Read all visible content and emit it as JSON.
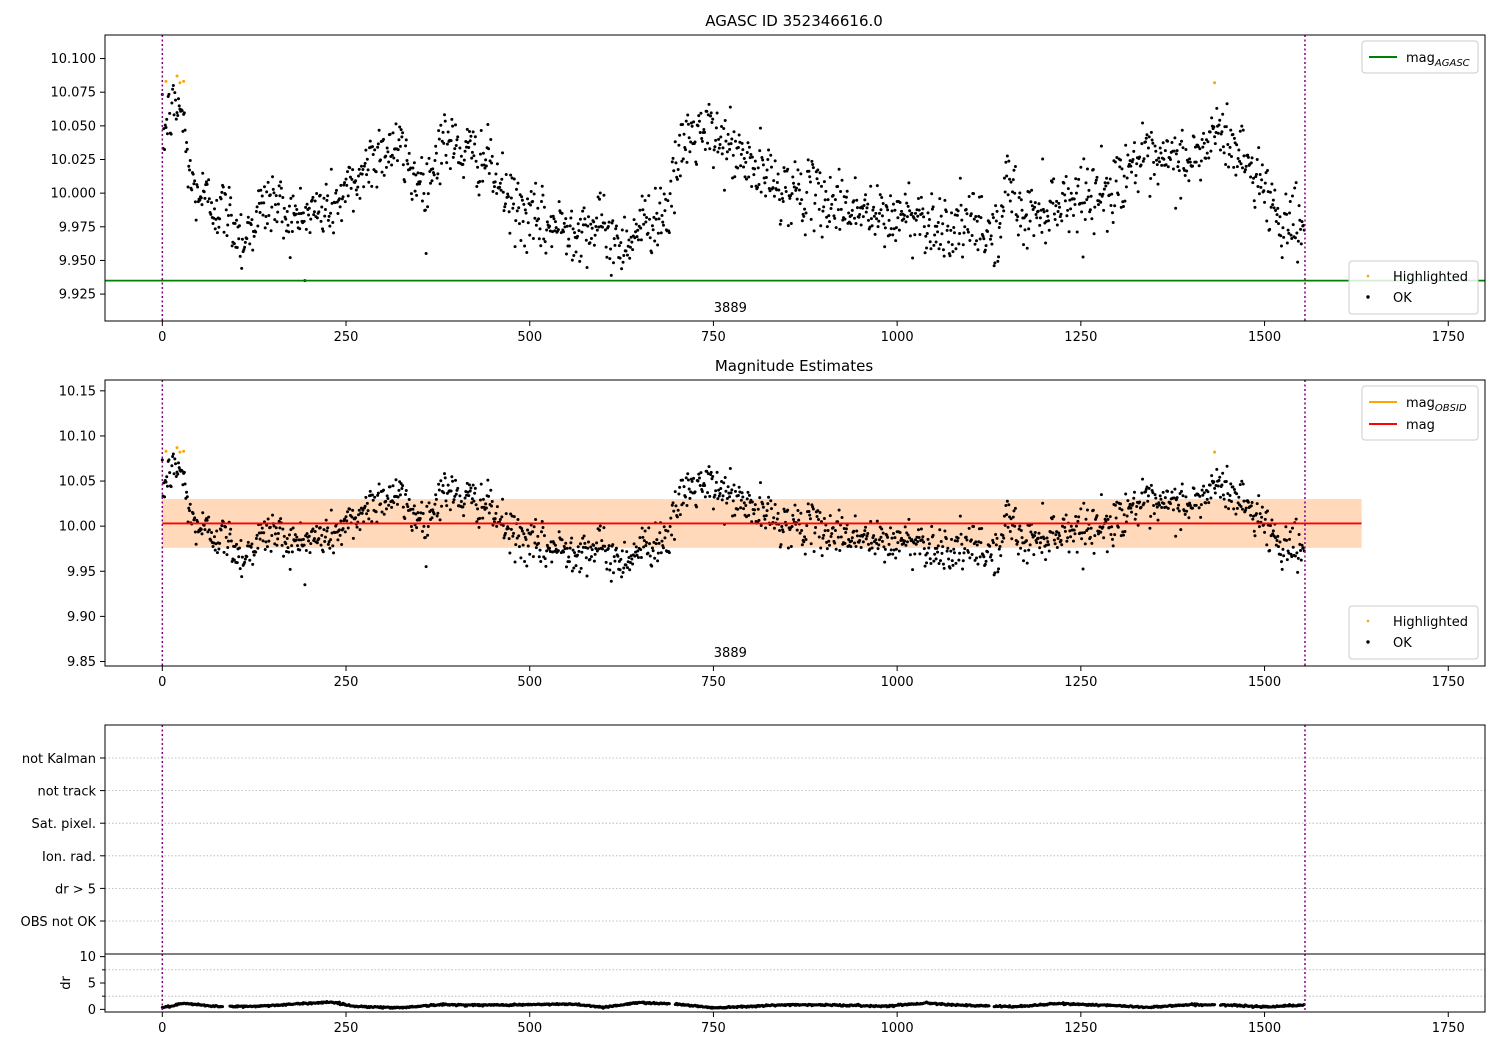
{
  "figure": {
    "panels": [
      {
        "id": "p1",
        "title": "AGASC ID 352346616.0",
        "xlim": [
          -78,
          1800
        ],
        "ylim": [
          9.905,
          10.1175
        ],
        "xticks": [
          0,
          250,
          500,
          750,
          1000,
          1250,
          1500,
          1750
        ],
        "yticks": [
          9.925,
          9.95,
          9.975,
          10.0,
          10.025,
          10.05,
          10.075,
          10.1
        ],
        "ytick_labels": [
          "9.925",
          "9.950",
          "9.975",
          "10.000",
          "10.025",
          "10.050",
          "10.075",
          "10.100"
        ],
        "obsid_text": "3889",
        "obsid_text_x": 773,
        "hline": {
          "y": 9.935,
          "color": "#008000"
        },
        "vlines": [
          0,
          1555
        ],
        "legend_upper": [
          {
            "label": "mag",
            "sub": "AGASC",
            "color": "#008000"
          }
        ],
        "legend_lower": [
          {
            "label": "Highlighted",
            "color": "#ffa500"
          },
          {
            "label": "OK",
            "color": "#000000"
          }
        ]
      },
      {
        "id": "p2",
        "title": "Magnitude Estimates",
        "xlim": [
          -78,
          1800
        ],
        "ylim": [
          9.845,
          10.162
        ],
        "xticks": [
          0,
          250,
          500,
          750,
          1000,
          1250,
          1500,
          1750
        ],
        "yticks": [
          9.85,
          9.9,
          9.95,
          10.0,
          10.05,
          10.1,
          10.15
        ],
        "ytick_labels": [
          "9.85",
          "9.90",
          "9.95",
          "10.00",
          "10.05",
          "10.10",
          "10.15"
        ],
        "obsid_text": "3889",
        "obsid_text_x": 773,
        "hline": {
          "y": 10.003,
          "color": "#ff0000"
        },
        "band": {
          "x": [
            0,
            1632
          ],
          "y": [
            9.976,
            10.03
          ],
          "color": "#ffb6c1"
        },
        "obsid_band": {
          "x": [
            0,
            1632
          ],
          "y": [
            9.976,
            10.03
          ],
          "color": "#ffa500"
        },
        "vlines": [
          0,
          1555
        ],
        "legend_upper": [
          {
            "label": "mag",
            "sub": "OBSID",
            "color": "#ffa500"
          },
          {
            "label": "mag",
            "sub": "",
            "color": "#ff0000"
          }
        ],
        "legend_lower": [
          {
            "label": "Highlighted",
            "color": "#ffa500"
          },
          {
            "label": "OK",
            "color": "#000000"
          }
        ]
      },
      {
        "id": "p3",
        "flag_labels": [
          "not Kalman",
          "not track",
          "Sat. pixel.",
          "Ion. rad.",
          "dr > 5",
          "OBS not OK"
        ],
        "vlines": [
          0,
          1555
        ]
      },
      {
        "id": "p4",
        "ylabel": "dr",
        "xlim": [
          -78,
          1800
        ],
        "ylim": [
          -0.5,
          10.5
        ],
        "xticks": [
          0,
          250,
          500,
          750,
          1000,
          1250,
          1500,
          1750
        ],
        "yticks": [
          0,
          5,
          10
        ],
        "ytick_labels": [
          "0",
          "5",
          "10"
        ],
        "vlines": [
          0,
          1555
        ]
      }
    ]
  },
  "chart_data": {
    "type": "scatter",
    "n_points": 1555,
    "x_range": [
      0,
      1555
    ],
    "series": [
      {
        "name": "OK",
        "color": "#000000",
        "trend_x": [
          0,
          10,
          25,
          40,
          60,
          90,
          110,
          130,
          150,
          180,
          200,
          230,
          260,
          290,
          320,
          340,
          360,
          380,
          410,
          440,
          470,
          500,
          530,
          560,
          600,
          620,
          650,
          690,
          710,
          740,
          770,
          800,
          840,
          870,
          900,
          940,
          980,
          1020,
          1060,
          1100,
          1140,
          1150,
          1170,
          1200,
          1230,
          1260,
          1290,
          1320,
          1350,
          1380,
          1410,
          1430,
          1450,
          1480,
          1500,
          1520,
          1540,
          1555
        ],
        "trend_y": [
          10.04,
          10.06,
          10.065,
          10.005,
          9.995,
          9.985,
          9.965,
          9.985,
          9.995,
          9.98,
          9.985,
          9.99,
          10.005,
          10.03,
          10.035,
          10.015,
          10.005,
          10.04,
          10.03,
          10.025,
          9.995,
          9.98,
          9.975,
          9.975,
          9.975,
          9.96,
          9.975,
          9.99,
          10.04,
          10.045,
          10.035,
          10.02,
          10.005,
          10.0,
          9.995,
          9.99,
          9.98,
          9.985,
          9.975,
          9.975,
          9.97,
          10.015,
          9.98,
          9.99,
          9.995,
          10.0,
          10.0,
          10.025,
          10.02,
          10.025,
          10.025,
          10.045,
          10.04,
          10.02,
          10.005,
          9.98,
          9.98,
          9.975
        ],
        "scatter_sd": 0.012
      },
      {
        "name": "Highlighted",
        "color": "#ffa500",
        "points": [
          [
            5,
            10.083
          ],
          [
            20,
            10.087
          ],
          [
            24,
            10.082
          ],
          [
            29,
            10.083
          ],
          [
            1432,
            10.082
          ]
        ]
      }
    ],
    "dr": {
      "trend_x": [
        0,
        30,
        80,
        130,
        180,
        230,
        260,
        320,
        380,
        440,
        500,
        560,
        600,
        650,
        700,
        750,
        800,
        860,
        920,
        980,
        1040,
        1100,
        1160,
        1220,
        1280,
        1340,
        1400,
        1450,
        1500,
        1555
      ],
      "trend_y": [
        0.3,
        1.1,
        0.5,
        0.6,
        1.0,
        1.4,
        0.6,
        0.3,
        0.9,
        0.8,
        0.9,
        1.0,
        0.4,
        1.3,
        1.0,
        0.3,
        0.6,
        0.9,
        0.8,
        0.6,
        1.2,
        0.7,
        0.5,
        1.1,
        0.8,
        0.4,
        0.9,
        0.8,
        0.5,
        0.8
      ]
    },
    "xlabel": "",
    "ylabel": ""
  }
}
